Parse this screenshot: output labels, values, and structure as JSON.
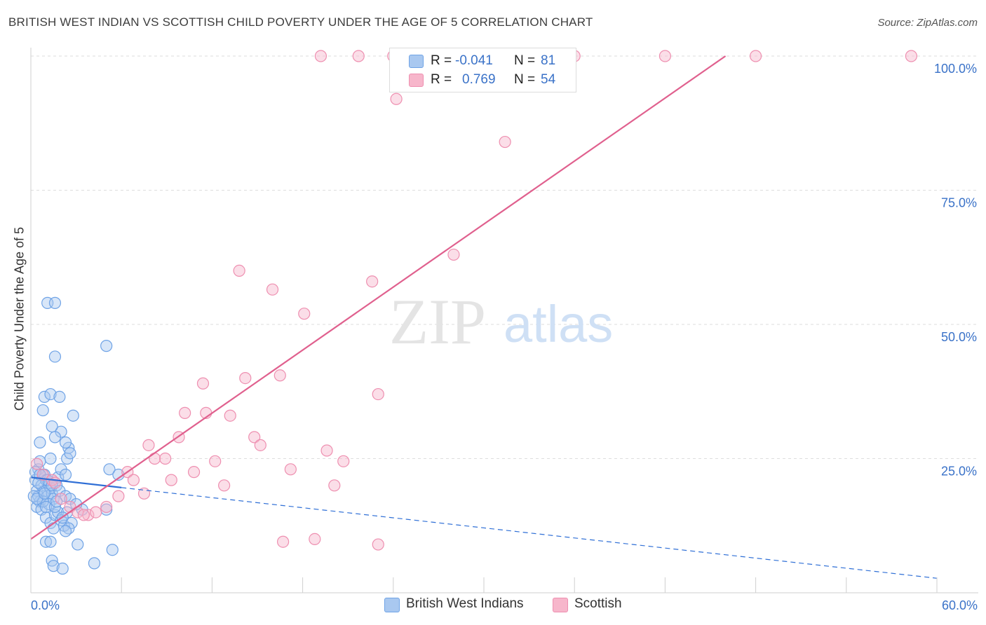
{
  "title": "BRITISH WEST INDIAN VS SCOTTISH CHILD POVERTY UNDER THE AGE OF 5 CORRELATION CHART",
  "source": "Source: ZipAtlas.com",
  "watermark": {
    "zip": "ZIP",
    "atlas": "atlas"
  },
  "legend_top": [
    {
      "r_label": "R = ",
      "r_value": "-0.041",
      "n_label": "N = ",
      "n_value": "81",
      "color": "#a9c8f0"
    },
    {
      "r_label": "R = ",
      "r_value": "0.769",
      "n_label": "N = ",
      "n_value": "54",
      "color": "#f7b6cb"
    }
  ],
  "legend_bottom": [
    {
      "label": "British West Indians",
      "color": "#a9c8f0"
    },
    {
      "label": "Scottish",
      "color": "#f7b6cb"
    }
  ],
  "chart_data": {
    "type": "scatter",
    "xlabel": "",
    "ylabel": "Child Poverty Under the Age of 5",
    "xlim": [
      0,
      60
    ],
    "ylim": [
      0,
      100
    ],
    "x_tick_labels": [
      {
        "value": 0,
        "label": "0.0%"
      },
      {
        "value": 60,
        "label": "60.0%"
      }
    ],
    "y_tick_labels": [
      {
        "value": 25,
        "label": "25.0%"
      },
      {
        "value": 50,
        "label": "50.0%"
      },
      {
        "value": 75,
        "label": "75.0%"
      },
      {
        "value": 100,
        "label": "100.0%"
      }
    ],
    "grid": true,
    "series": [
      {
        "name": "British West Indians",
        "color": "#6fa3e6",
        "fill": "#a9c8f0",
        "trend": {
          "x": [
            0,
            6
          ],
          "y": [
            21.5,
            19.6
          ],
          "dashed_to": [
            60,
            2.7
          ],
          "color": "#2f6fd6"
        },
        "points": [
          [
            0.3,
            21
          ],
          [
            0.4,
            19
          ],
          [
            0.5,
            18
          ],
          [
            0.6,
            17
          ],
          [
            0.7,
            20
          ],
          [
            0.8,
            22
          ],
          [
            0.5,
            23
          ],
          [
            0.9,
            19
          ],
          [
            1.1,
            18
          ],
          [
            1.2,
            20
          ],
          [
            0.6,
            24.5
          ],
          [
            0.9,
            22
          ],
          [
            1.0,
            21
          ],
          [
            1.3,
            19.5
          ],
          [
            1.4,
            18.5
          ],
          [
            1.5,
            17.5
          ],
          [
            1.7,
            20
          ],
          [
            1.8,
            21.5
          ],
          [
            0.4,
            16
          ],
          [
            0.7,
            15.5
          ],
          [
            1.0,
            14
          ],
          [
            1.2,
            16.5
          ],
          [
            1.3,
            13
          ],
          [
            1.5,
            12
          ],
          [
            1.6,
            14.5
          ],
          [
            1.8,
            15
          ],
          [
            2.0,
            13.5
          ],
          [
            2.2,
            12.5
          ],
          [
            1.1,
            54
          ],
          [
            1.6,
            54
          ],
          [
            1.6,
            44
          ],
          [
            2.4,
            25
          ],
          [
            2.5,
            27
          ],
          [
            2.3,
            28
          ],
          [
            2.0,
            30
          ],
          [
            1.4,
            31
          ],
          [
            1.6,
            29
          ],
          [
            0.8,
            34
          ],
          [
            0.9,
            36.5
          ],
          [
            2.8,
            33
          ],
          [
            1.3,
            37
          ],
          [
            1.9,
            36.5
          ],
          [
            0.6,
            28
          ],
          [
            1.3,
            25
          ],
          [
            2.6,
            26
          ],
          [
            2.0,
            23
          ],
          [
            2.3,
            22
          ],
          [
            0.3,
            22.5
          ],
          [
            0.6,
            22
          ],
          [
            1.1,
            21
          ],
          [
            0.5,
            20.5
          ],
          [
            1.4,
            20
          ],
          [
            1.9,
            19
          ],
          [
            2.3,
            18
          ],
          [
            2.6,
            17.5
          ],
          [
            0.8,
            17
          ],
          [
            1.0,
            16
          ],
          [
            1.6,
            16
          ],
          [
            2.4,
            15
          ],
          [
            3.4,
            15.5
          ],
          [
            2.1,
            14
          ],
          [
            2.7,
            13
          ],
          [
            2.5,
            12
          ],
          [
            2.3,
            11.5
          ],
          [
            1.0,
            9.5
          ],
          [
            1.3,
            9.5
          ],
          [
            3.1,
            9
          ],
          [
            1.4,
            6
          ],
          [
            1.5,
            5
          ],
          [
            2.1,
            4.5
          ],
          [
            4.2,
            5.5
          ],
          [
            5.4,
            8
          ],
          [
            5.0,
            15.5
          ],
          [
            5.2,
            23
          ],
          [
            5.8,
            22
          ],
          [
            5.0,
            46
          ],
          [
            0.2,
            18
          ],
          [
            0.4,
            17.5
          ],
          [
            0.9,
            18.5
          ],
          [
            1.7,
            17
          ],
          [
            3.0,
            16.5
          ]
        ]
      },
      {
        "name": "Scottish",
        "color": "#ee8fb0",
        "fill": "#f7b6cb",
        "trend": {
          "x": [
            0,
            46
          ],
          "y": [
            10,
            100
          ],
          "color": "#e0608e"
        },
        "points": [
          [
            0.4,
            24
          ],
          [
            0.8,
            22
          ],
          [
            1.4,
            21
          ],
          [
            1.6,
            20.5
          ],
          [
            2.0,
            17.5
          ],
          [
            2.6,
            16
          ],
          [
            3.1,
            15
          ],
          [
            3.8,
            14.5
          ],
          [
            4.3,
            15
          ],
          [
            5.0,
            16
          ],
          [
            5.8,
            18
          ],
          [
            6.4,
            22.5
          ],
          [
            6.8,
            21
          ],
          [
            7.5,
            18.5
          ],
          [
            7.8,
            27.5
          ],
          [
            8.2,
            25
          ],
          [
            8.9,
            25
          ],
          [
            9.3,
            21
          ],
          [
            9.8,
            29
          ],
          [
            10.2,
            33.5
          ],
          [
            10.8,
            22.5
          ],
          [
            11.4,
            39
          ],
          [
            11.6,
            33.5
          ],
          [
            12.2,
            24.5
          ],
          [
            12.8,
            20
          ],
          [
            13.2,
            33
          ],
          [
            13.8,
            60
          ],
          [
            14.2,
            40
          ],
          [
            14.8,
            29
          ],
          [
            15.2,
            27.5
          ],
          [
            16.0,
            56.5
          ],
          [
            16.5,
            40.5
          ],
          [
            16.7,
            9.5
          ],
          [
            17.2,
            23
          ],
          [
            18.1,
            52
          ],
          [
            18.8,
            10
          ],
          [
            19.2,
            100
          ],
          [
            19.6,
            26.5
          ],
          [
            20.1,
            20
          ],
          [
            20.7,
            24.5
          ],
          [
            21.7,
            100
          ],
          [
            22.6,
            58
          ],
          [
            23.0,
            9
          ],
          [
            23.0,
            37
          ],
          [
            24.0,
            100
          ],
          [
            24.2,
            92
          ],
          [
            28.0,
            63
          ],
          [
            29.0,
            100
          ],
          [
            31.4,
            84
          ],
          [
            36.0,
            100
          ],
          [
            42.0,
            100
          ],
          [
            48.0,
            100
          ],
          [
            58.3,
            100
          ],
          [
            3.5,
            14.5
          ]
        ]
      }
    ]
  }
}
